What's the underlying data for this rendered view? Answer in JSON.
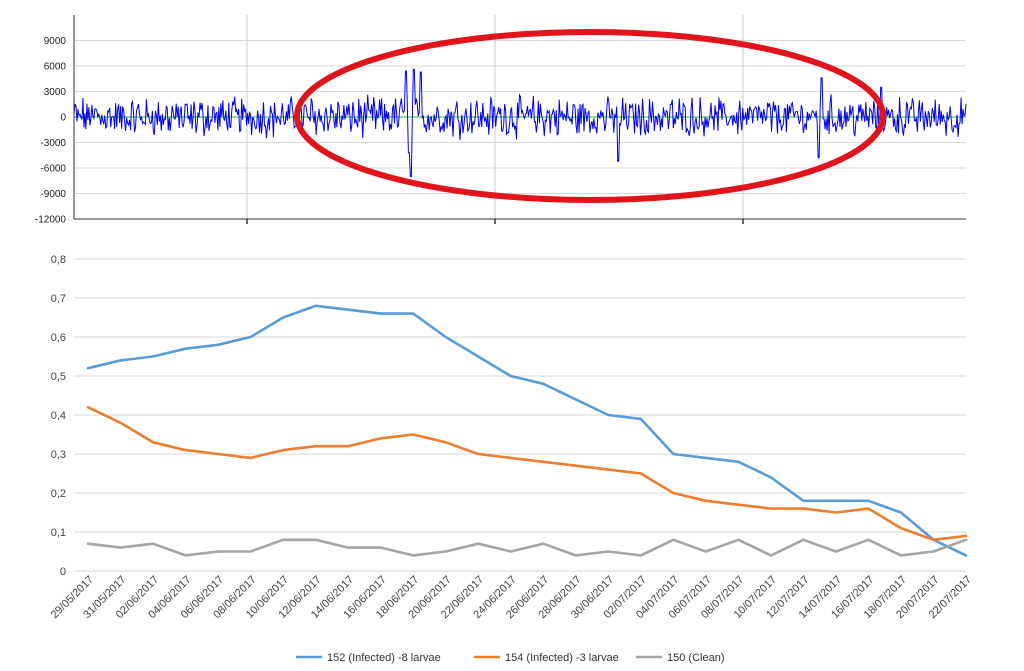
{
  "chart_data": [
    {
      "type": "line",
      "title": "",
      "xlabel": "",
      "ylabel": "",
      "ylim": [
        -12000,
        12000
      ],
      "yticks": [
        "9000",
        "6000",
        "3000",
        "0",
        "-3000",
        "-6000",
        "-9000",
        "-12000"
      ],
      "grid": true,
      "series_color": "#0000ee",
      "baseline_color": "#2db82d",
      "annotation": {
        "shape": "ellipse",
        "color": "#e0141a"
      },
      "signal_description": "dense oscillating signal around 0, mostly within ±3000, spikes to ~5500 and ~-7000 near the first quarter, ~-5000 mid-way, ~4500/-4800 near the last quarter"
    },
    {
      "type": "line",
      "title": "",
      "xlabel": "",
      "ylabel": "",
      "ylim": [
        0,
        0.8
      ],
      "yticks": [
        "0",
        "0,1",
        "0,2",
        "0,3",
        "0,4",
        "0,5",
        "0,6",
        "0,7",
        "0,8"
      ],
      "grid": true,
      "legend_position": "bottom",
      "categories": [
        "29/05/2017",
        "31/05/2017",
        "02/06/2017",
        "04/06/2017",
        "06/06/2017",
        "08/06/2017",
        "10/06/2017",
        "12/06/2017",
        "14/06/2017",
        "16/06/2017",
        "18/06/2017",
        "20/06/2017",
        "22/06/2017",
        "24/06/2017",
        "26/06/2017",
        "28/06/2017",
        "30/06/2017",
        "02/07/2017",
        "04/07/2017",
        "06/07/2017",
        "08/07/2017",
        "10/07/2017",
        "12/07/2017",
        "14/07/2017",
        "16/07/2017",
        "18/07/2017",
        "20/07/2017",
        "22/07/2017"
      ],
      "series": [
        {
          "name": "152 (Infected) -8 larvae",
          "color": "#5b9bd5",
          "values": [
            0.52,
            0.54,
            0.55,
            0.57,
            0.58,
            0.6,
            0.65,
            0.68,
            0.67,
            0.66,
            0.66,
            0.6,
            0.55,
            0.5,
            0.48,
            0.44,
            0.4,
            0.39,
            0.3,
            0.29,
            0.28,
            0.24,
            0.18,
            0.18,
            0.18,
            0.15,
            0.08,
            0.04
          ]
        },
        {
          "name": "154 (Infected) -3 larvae",
          "color": "#ed7d31",
          "values": [
            0.42,
            0.38,
            0.33,
            0.31,
            0.3,
            0.29,
            0.31,
            0.32,
            0.32,
            0.34,
            0.35,
            0.33,
            0.3,
            0.29,
            0.28,
            0.27,
            0.26,
            0.25,
            0.2,
            0.18,
            0.17,
            0.16,
            0.16,
            0.15,
            0.16,
            0.11,
            0.08,
            0.09
          ]
        },
        {
          "name": "150 (Clean)",
          "color": "#a5a5a5",
          "values": [
            0.07,
            0.06,
            0.07,
            0.04,
            0.05,
            0.05,
            0.08,
            0.08,
            0.06,
            0.06,
            0.04,
            0.05,
            0.07,
            0.05,
            0.07,
            0.04,
            0.05,
            0.04,
            0.08,
            0.05,
            0.08,
            0.04,
            0.08,
            0.05,
            0.08,
            0.04,
            0.05,
            0.08
          ]
        }
      ]
    }
  ]
}
